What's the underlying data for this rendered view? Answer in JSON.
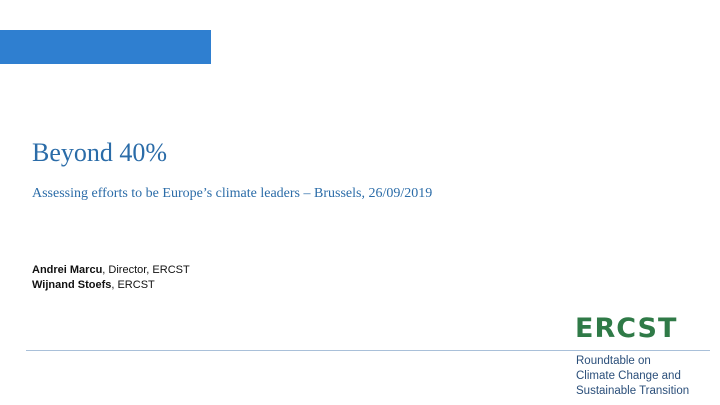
{
  "slide": {
    "title": "Beyond 40%",
    "subtitle": "Assessing efforts to be Europe’s climate leaders – Brussels, 26/09/2019",
    "authors": [
      {
        "name": "Andrei Marcu",
        "role": ", Director, ERCST"
      },
      {
        "name": "Wijnand Stoefs",
        "role": ", ERCST"
      }
    ]
  },
  "logo": {
    "text": "ERCST",
    "tagline": [
      "Roundtable on",
      "Climate Change and",
      "Sustainable Transition"
    ]
  },
  "colors": {
    "accent": "#2f7fd0",
    "title": "#2b6ca8",
    "logo": "#2f7a47"
  }
}
